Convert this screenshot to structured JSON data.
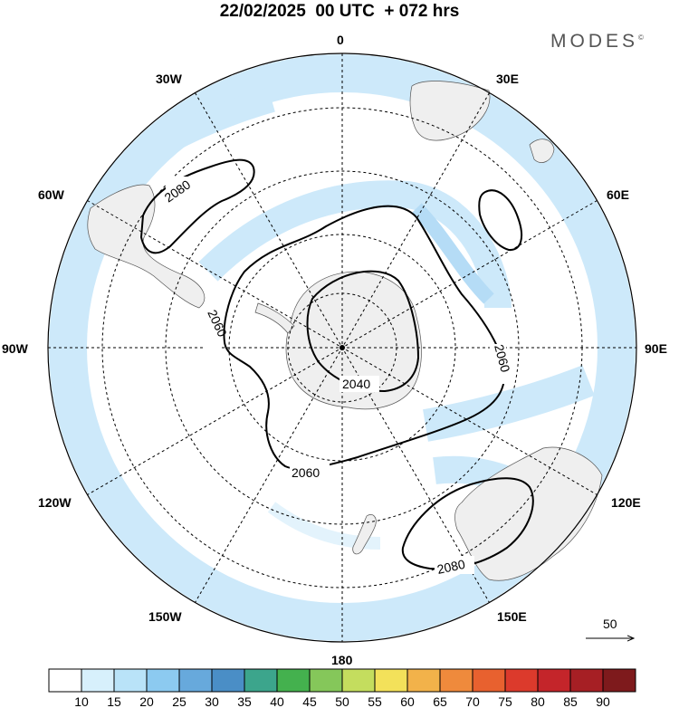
{
  "title": "22/02/2025  00 UTC  + 072 hrs",
  "brand": "MODES",
  "brand_mark": "©",
  "map": {
    "projection": "south polar stereographic",
    "meridian_labels": {
      "0": "0",
      "30E": "30E",
      "60E": "60E",
      "90E": "90E",
      "120E": "120E",
      "150E": "150E",
      "180": "180",
      "150W": "150W",
      "120W": "120W",
      "90W": "90W",
      "60W": "60W",
      "30W": "30W"
    },
    "contours": [
      {
        "id": "c2040",
        "label": "2040"
      },
      {
        "id": "c2060",
        "label": "2060"
      },
      {
        "id": "c2060b",
        "label": "2060"
      },
      {
        "id": "c2060c",
        "label": "2060"
      },
      {
        "id": "c2080a",
        "label": "2080"
      },
      {
        "id": "c2080b",
        "label": "2080"
      }
    ],
    "reference_vector": "50"
  },
  "colorbar": {
    "ticks": [
      "10",
      "15",
      "20",
      "25",
      "30",
      "35",
      "40",
      "45",
      "50",
      "55",
      "60",
      "65",
      "70",
      "75",
      "80",
      "85",
      "90"
    ],
    "colors": [
      "#ffffff",
      "#d7f0fc",
      "#b9e3f8",
      "#8ccaf0",
      "#67a9dc",
      "#4a8ec6",
      "#3ca58c",
      "#44b14e",
      "#85c75a",
      "#c4dd5e",
      "#f3e15a",
      "#f2b24a",
      "#ef8a3c",
      "#e8612f",
      "#dc3a2c",
      "#c4252a",
      "#a61f24",
      "#7e1a1c"
    ]
  }
}
